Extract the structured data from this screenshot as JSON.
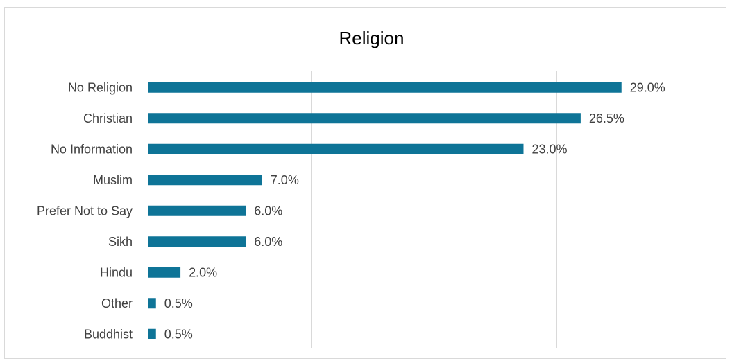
{
  "chart_data": {
    "type": "bar",
    "orientation": "horizontal",
    "title": "Religion",
    "categories": [
      "No Religion",
      "Christian",
      "No Information",
      "Muslim",
      "Prefer Not to Say",
      "Sikh",
      "Hindu",
      "Other",
      "Buddhist"
    ],
    "values": [
      29.0,
      26.5,
      23.0,
      7.0,
      6.0,
      6.0,
      2.0,
      0.5,
      0.5
    ],
    "value_labels": [
      "29.0%",
      "26.5%",
      "23.0%",
      "7.0%",
      "6.0%",
      "6.0%",
      "2.0%",
      "0.5%",
      "0.5%"
    ],
    "xlim": [
      0,
      35
    ],
    "x_gridlines": [
      0,
      5,
      10,
      15,
      20,
      25,
      30,
      35
    ],
    "grid": true,
    "legend": "none",
    "bar_color": "#0e7497",
    "grid_color": "#d9d9d9"
  }
}
